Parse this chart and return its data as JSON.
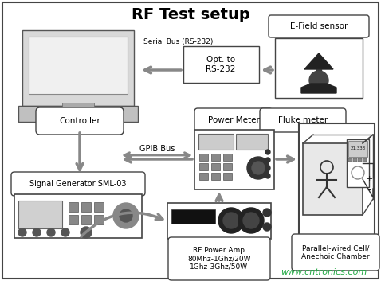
{
  "title": "RF Test setup",
  "bg_color": "#ffffff",
  "arrow_color": "#888888",
  "watermark": "www.cntronics.com",
  "watermark_color": "#22aa44",
  "serial_bus_label": "Serial Bus (RS-232)",
  "gpib_label": "GPIB Bus"
}
